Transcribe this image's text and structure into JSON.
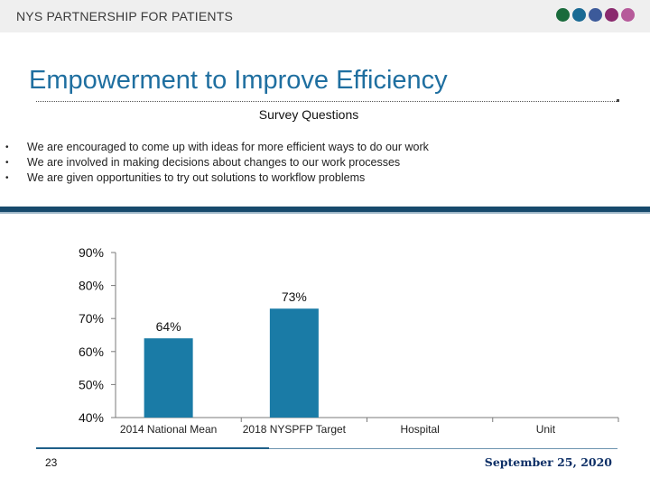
{
  "header": {
    "org": "NYS PARTNERSHIP FOR PATIENTS",
    "dot_colors": [
      "#1a6b3c",
      "#1a6a94",
      "#3c5a9a",
      "#8a2a6e",
      "#b65a9a"
    ]
  },
  "title": "Empowerment to Improve Efficiency",
  "subtitle": "Survey Questions",
  "bullets": [
    "We are encouraged to come up with ideas for more efficient ways to do our work",
    "We are involved in making decisions about changes to our work processes",
    "We are given opportunities to try out solutions to workflow problems"
  ],
  "chart_data": {
    "type": "bar",
    "categories": [
      "2014 National Mean",
      "2018 NYSPFP Target",
      "Hospital",
      "Unit"
    ],
    "values": [
      64,
      73,
      null,
      null
    ],
    "data_labels": [
      "64%",
      "73%",
      "",
      ""
    ],
    "ylim": [
      40,
      90
    ],
    "yticks": [
      "40%",
      "50%",
      "60%",
      "70%",
      "80%",
      "90%"
    ],
    "xlabel": "",
    "ylabel": "",
    "bar_color": "#1a7ba6",
    "grid": false
  },
  "footer": {
    "page": "23",
    "date": "September 25, 2020"
  }
}
